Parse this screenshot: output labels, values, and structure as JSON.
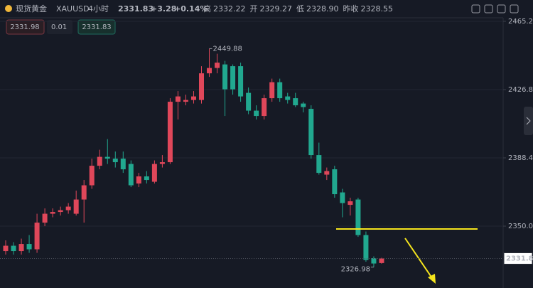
{
  "header": {
    "name": "现货黄金",
    "symbol": "XAUUSD",
    "interval": "4小时",
    "price": "2331.83",
    "change": "+3.28",
    "change_pct": "+0.14%",
    "stats": [
      {
        "label": "高",
        "value": "2332.22"
      },
      {
        "label": "开",
        "value": "2329.27"
      },
      {
        "label": "低",
        "value": "2328.90"
      },
      {
        "label": "昨收",
        "value": "2328.55"
      }
    ]
  },
  "order_panel": {
    "sell": "2331.98",
    "size": "0.01",
    "buy": "2331.83"
  },
  "chart_data": {
    "type": "candlestick",
    "open": [
      2336,
      2339,
      2336,
      2340,
      2337,
      2352,
      2357,
      2358,
      2359,
      2357,
      2365,
      2373,
      2384,
      2389,
      2388,
      2388,
      2385,
      2374,
      2378,
      2375,
      2385,
      2386,
      2420,
      2420,
      2421,
      2421,
      2436,
      2439,
      2441,
      2440,
      2440,
      2425,
      2415,
      2412,
      2422,
      2431,
      2423,
      2422,
      2419,
      2416,
      2390,
      2379,
      2382,
      2369,
      2362,
      2365,
      2345,
      2332,
      2329.27
    ],
    "high": [
      2342,
      2341,
      2343,
      2345,
      2357,
      2360,
      2360,
      2361,
      2363,
      2370,
      2376,
      2388,
      2393,
      2399,
      2392,
      2392,
      2387,
      2380,
      2381,
      2387,
      2390,
      2422,
      2426,
      2424,
      2426,
      2440,
      2449.88,
      2447,
      2443,
      2441,
      2442,
      2428,
      2418,
      2424,
      2433,
      2433,
      2425,
      2425,
      2420,
      2418,
      2397,
      2383,
      2384,
      2371,
      2366,
      2366,
      2347,
      2333,
      2332.22
    ],
    "low": [
      2334,
      2334,
      2334,
      2335,
      2335,
      2350,
      2355,
      2356,
      2357,
      2356,
      2352,
      2371,
      2382,
      2385,
      2383,
      2380,
      2372,
      2372,
      2374,
      2374,
      2383,
      2385,
      2410,
      2418,
      2419,
      2419,
      2434,
      2436,
      2412,
      2424,
      2420,
      2413,
      2410,
      2410,
      2420,
      2420,
      2419,
      2417,
      2414,
      2388,
      2379,
      2376,
      2366,
      2355,
      2356,
      2344,
      2330,
      2326.98,
      2328.9
    ],
    "close": [
      2339,
      2336,
      2340,
      2337,
      2352,
      2357,
      2358,
      2359,
      2361,
      2365,
      2373,
      2384,
      2389,
      2388,
      2386,
      2382,
      2373,
      2378,
      2376,
      2385,
      2386,
      2420,
      2423,
      2421,
      2423,
      2436,
      2439,
      2442,
      2427,
      2427,
      2423,
      2415,
      2412,
      2422,
      2431,
      2422,
      2421,
      2418,
      2417,
      2390,
      2380,
      2381,
      2368,
      2363,
      2364,
      2345,
      2331,
      2329,
      2331.83
    ],
    "up_color": "#e0475a",
    "down_color": "#21a88f",
    "ylim": [
      2315.22,
      2467.24
    ],
    "yticks": [
      2350.02,
      2388.43,
      2426.84,
      2465.24
    ],
    "grid": true,
    "hline": {
      "value": 2348.4,
      "color": "#f5e51d"
    }
  }
}
